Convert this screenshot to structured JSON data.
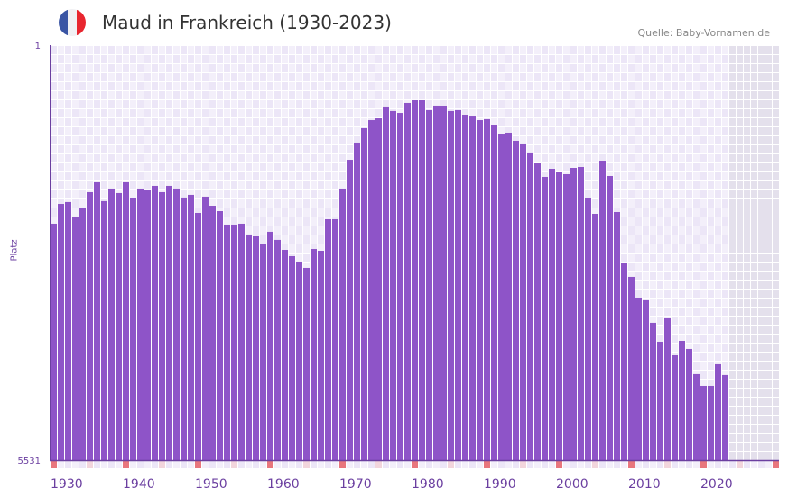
{
  "header": {
    "title": "Maud in Frankreich (1930-2023)",
    "source": "Quelle: Baby-Vornamen.de",
    "flag_icon": "france-flag-icon"
  },
  "colors": {
    "bar": "#8e54c8",
    "axis": "#6b3fa0",
    "decade_marker": "#e8767d",
    "half_decade_marker": "#f2d5dc",
    "future_bg": "#e4e0ec"
  },
  "chart_data": {
    "type": "bar",
    "title": "Maud in Frankreich (1930-2023)",
    "xlabel": "",
    "ylabel": "Platz",
    "y_axis": "rank (inverted, 1 at top)",
    "ylim": [
      1,
      5531
    ],
    "ytick_labels": [
      "1",
      "5531"
    ],
    "xlim": [
      1930,
      2030
    ],
    "xtick_labels": [
      "1930",
      "1940",
      "1950",
      "1960",
      "1970",
      "1980",
      "1990",
      "2000",
      "2010",
      "2020"
    ],
    "x": [
      1930,
      1931,
      1932,
      1933,
      1934,
      1935,
      1936,
      1937,
      1938,
      1939,
      1940,
      1941,
      1942,
      1943,
      1944,
      1945,
      1946,
      1947,
      1948,
      1949,
      1950,
      1951,
      1952,
      1953,
      1954,
      1955,
      1956,
      1957,
      1958,
      1959,
      1960,
      1961,
      1962,
      1963,
      1964,
      1965,
      1966,
      1967,
      1968,
      1969,
      1970,
      1971,
      1972,
      1973,
      1974,
      1975,
      1976,
      1977,
      1978,
      1979,
      1980,
      1981,
      1982,
      1983,
      1984,
      1985,
      1986,
      1987,
      1988,
      1989,
      1990,
      1991,
      1992,
      1993,
      1994,
      1995,
      1996,
      1997,
      1998,
      1999,
      2000,
      2001,
      2002,
      2003,
      2004,
      2005,
      2006,
      2007,
      2008,
      2009,
      2010,
      2011,
      2012,
      2013,
      2014,
      2015,
      2016,
      2017,
      2018,
      2019,
      2020,
      2021,
      2022,
      2023
    ],
    "values": [
      2381,
      2117,
      2092,
      2285,
      2165,
      1960,
      1828,
      2080,
      1912,
      1972,
      1828,
      2044,
      1912,
      1936,
      1876,
      1960,
      1876,
      1912,
      2032,
      1996,
      2237,
      2020,
      2141,
      2213,
      2393,
      2393,
      2381,
      2525,
      2549,
      2657,
      2489,
      2597,
      2730,
      2814,
      2886,
      2970,
      2718,
      2742,
      2321,
      2321,
      1912,
      1528,
      1299,
      1107,
      999,
      975,
      830,
      878,
      903,
      770,
      734,
      734,
      866,
      806,
      818,
      878,
      866,
      927,
      951,
      999,
      987,
      1071,
      1191,
      1167,
      1275,
      1323,
      1443,
      1576,
      1756,
      1648,
      1696,
      1720,
      1636,
      1624,
      2044,
      2249,
      1540,
      1744,
      2225,
      2898,
      3090,
      3367,
      3403,
      3703,
      3956,
      3631,
      4136,
      3944,
      4052,
      4376,
      4545,
      4545,
      4244,
      4400
    ],
    "grid": true
  }
}
